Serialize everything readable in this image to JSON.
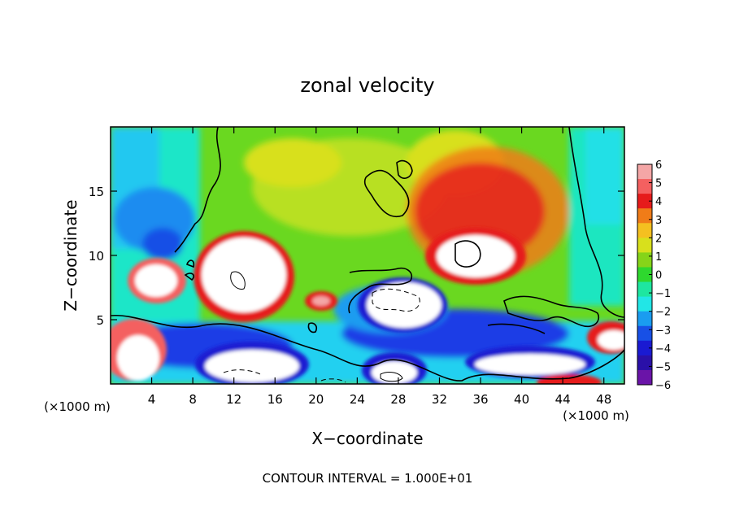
{
  "chart_data": {
    "type": "heatmap",
    "title": "zonal velocity",
    "xlabel": "X−coordinate",
    "ylabel": "Z−coordinate",
    "x_unit_label": "(×1000 m)",
    "x_unit_label_right": "(×1000 m)",
    "xlim": [
      0,
      50
    ],
    "ylim": [
      0,
      20
    ],
    "x_ticks": [
      4,
      8,
      12,
      16,
      20,
      24,
      28,
      32,
      36,
      40,
      44,
      48
    ],
    "y_ticks": [
      5,
      10,
      15
    ],
    "footer": "CONTOUR INTERVAL = 1.000E+01",
    "colorbar": {
      "ticks": [
        "6",
        "5",
        "4",
        "3",
        "2",
        "1",
        "0",
        "−1",
        "−2",
        "−3",
        "−4",
        "−5",
        "−6"
      ],
      "range": [
        -6,
        6
      ],
      "colors": [
        "#f4a6a6",
        "#f46060",
        "#e61b1b",
        "#f07c18",
        "#f4c020",
        "#d8e01c",
        "#86d419",
        "#2ed82e",
        "#1ee6a0",
        "#22e6e6",
        "#1a9cf0",
        "#1850e6",
        "#1a1ad2",
        "#2a10a8",
        "#6a14a8"
      ]
    },
    "features": [
      {
        "kind": "positive-max",
        "center": [
          5,
          8.5
        ],
        "label": "white (>6)"
      },
      {
        "kind": "positive-max",
        "center": [
          12.5,
          9
        ],
        "label": "white (>6)"
      },
      {
        "kind": "positive-max",
        "center": [
          35.5,
          10
        ],
        "label": "white (>6)"
      },
      {
        "kind": "positive-max",
        "center": [
          28,
          5.5
        ],
        "label": "white (>6)"
      },
      {
        "kind": "positive-max",
        "center": [
          3,
          1.5
        ],
        "label": "white (>6)"
      },
      {
        "kind": "positive-max",
        "center": [
          15,
          1.5
        ],
        "label": "white (>6)"
      },
      {
        "kind": "positive-max",
        "center": [
          40,
          1.8
        ],
        "label": "white (>6)"
      },
      {
        "kind": "positive-max",
        "center": [
          48.5,
          3
        ],
        "label": "white (>6)"
      }
    ]
  }
}
